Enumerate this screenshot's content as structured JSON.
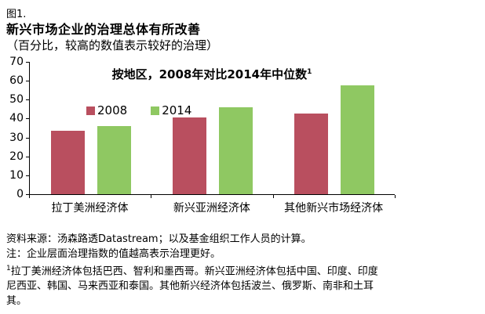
{
  "header": {
    "figure_label": "图1.",
    "title": "新兴市场企业的治理总体有所改善",
    "subtitle": "（百分比，较高的数值表示较好的治理）"
  },
  "chart_data": {
    "type": "bar",
    "title": "按地区，2008年对比2014年中位数",
    "title_superscript": "1",
    "categories": [
      "拉丁美洲经济体",
      "新兴亚洲经济体",
      "其他新兴市场经济体"
    ],
    "series": [
      {
        "name": "2008",
        "color": "#b94f5f",
        "values": [
          33.5,
          40.5,
          42.5
        ]
      },
      {
        "name": "2014",
        "color": "#8fc862",
        "values": [
          36,
          46,
          57.5
        ]
      }
    ],
    "ylim": [
      0,
      70
    ],
    "yticks": [
      70,
      60,
      50,
      40,
      30,
      20,
      10,
      0
    ],
    "grid": false,
    "legend_position": "inside-top-left",
    "xlabel": "",
    "ylabel": ""
  },
  "footer": {
    "source": "资料来源：汤森路透Datastream；以及基金组织工作人员的计算。",
    "note": "注：企业层面治理指数的值越高表示治理更好。",
    "footnote_superscript": "1",
    "footnote": "拉丁美洲经济体包括巴西、智利和墨西哥。新兴亚洲经济体包括中国、印度、印度尼西亚、韩国、马来西亚和泰国。其他新兴经济体包括波兰、俄罗斯、南非和土耳其。"
  }
}
